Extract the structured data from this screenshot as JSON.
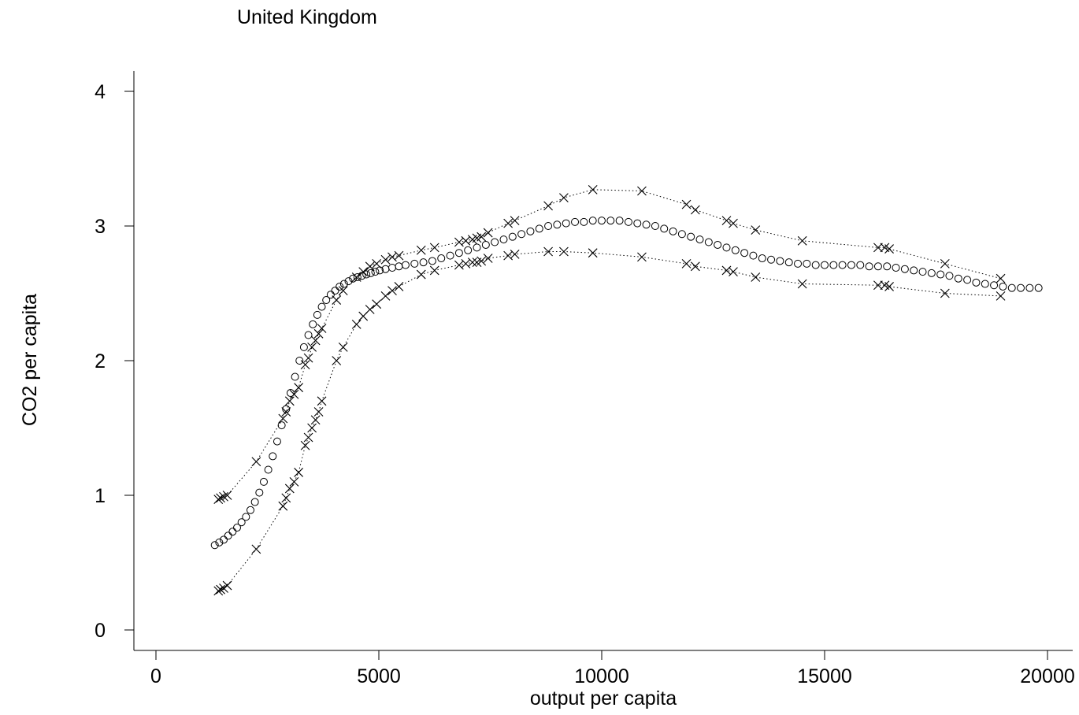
{
  "chart_data": {
    "type": "scatter",
    "title": "United Kingdom",
    "xlabel": "output per capita",
    "ylabel": "CO2 per capita",
    "xlim": [
      -500,
      20500
    ],
    "ylim": [
      -0.15,
      4.15
    ],
    "xticks": [
      0,
      5000,
      10000,
      15000,
      20000
    ],
    "xtick_labels": [
      "0",
      "5000",
      "10000",
      "15000",
      "20000"
    ],
    "yticks": [
      0,
      1,
      2,
      3,
      4
    ],
    "ytick_labels": [
      "0",
      "1",
      "2",
      "3",
      "4"
    ],
    "grid": false,
    "series": [
      {
        "marker": "circle",
        "x": [
          1320,
          1420,
          1520,
          1620,
          1720,
          1820,
          1920,
          2020,
          2120,
          2220,
          2320,
          2420,
          2520,
          2620,
          2720,
          2820,
          2920,
          3020,
          3120,
          3220,
          3320,
          3420,
          3520,
          3620,
          3720,
          3820,
          3920,
          4020,
          4120,
          4220,
          4320,
          4420,
          4520,
          4620,
          4720,
          4820,
          4920,
          5020,
          5150,
          5300,
          5450,
          5600,
          5800,
          6000,
          6200,
          6400,
          6600,
          6800,
          7000,
          7200,
          7400,
          7600,
          7800,
          8000,
          8200,
          8400,
          8600,
          8800,
          9000,
          9200,
          9400,
          9600,
          9800,
          10000,
          10200,
          10400,
          10600,
          10800,
          11000,
          11200,
          11400,
          11600,
          11800,
          12000,
          12200,
          12400,
          12600,
          12800,
          13000,
          13200,
          13400,
          13600,
          13800,
          14000,
          14200,
          14400,
          14600,
          14800,
          15000,
          15200,
          15400,
          15600,
          15800,
          16000,
          16200,
          16400,
          16600,
          16800,
          17000,
          17200,
          17400,
          17600,
          17800,
          18000,
          18200,
          18400,
          18600,
          18800,
          19000,
          19200,
          19400,
          19600,
          19800
        ],
        "y": [
          0.63,
          0.65,
          0.67,
          0.7,
          0.73,
          0.76,
          0.8,
          0.84,
          0.89,
          0.95,
          1.02,
          1.1,
          1.19,
          1.29,
          1.4,
          1.52,
          1.64,
          1.76,
          1.88,
          2.0,
          2.1,
          2.19,
          2.27,
          2.34,
          2.4,
          2.45,
          2.49,
          2.52,
          2.55,
          2.57,
          2.59,
          2.61,
          2.62,
          2.63,
          2.64,
          2.65,
          2.66,
          2.67,
          2.68,
          2.69,
          2.7,
          2.71,
          2.72,
          2.73,
          2.74,
          2.76,
          2.78,
          2.8,
          2.82,
          2.84,
          2.86,
          2.88,
          2.9,
          2.92,
          2.94,
          2.96,
          2.98,
          3.0,
          3.01,
          3.02,
          3.03,
          3.03,
          3.04,
          3.04,
          3.04,
          3.04,
          3.03,
          3.02,
          3.01,
          3.0,
          2.98,
          2.96,
          2.94,
          2.92,
          2.9,
          2.88,
          2.86,
          2.84,
          2.82,
          2.8,
          2.78,
          2.76,
          2.75,
          2.74,
          2.73,
          2.72,
          2.72,
          2.71,
          2.71,
          2.71,
          2.71,
          2.71,
          2.71,
          2.7,
          2.7,
          2.7,
          2.69,
          2.68,
          2.67,
          2.66,
          2.65,
          2.64,
          2.63,
          2.61,
          2.6,
          2.58,
          2.57,
          2.56,
          2.55,
          2.54,
          2.54,
          2.54,
          2.54
        ]
      },
      {
        "marker": "x",
        "line": "dotted",
        "x": [
          1400,
          1450,
          1520,
          1600,
          2250,
          2850,
          2920,
          3000,
          3100,
          3200,
          3350,
          3420,
          3500,
          3580,
          3650,
          3720,
          4050,
          4200,
          4500,
          4650,
          4800,
          4950,
          5150,
          5300,
          5450,
          5950,
          6250,
          6800,
          6950,
          7100,
          7200,
          7300,
          7450,
          7900,
          8050,
          8800,
          9150,
          9800,
          10900,
          11900,
          12100,
          12800,
          12950,
          13450,
          14500,
          16200,
          16350,
          16450,
          17700,
          18950
        ],
        "y": [
          0.97,
          0.98,
          0.99,
          1.0,
          1.25,
          1.57,
          1.62,
          1.7,
          1.75,
          1.8,
          1.97,
          2.02,
          2.1,
          2.15,
          2.2,
          2.24,
          2.45,
          2.52,
          2.62,
          2.66,
          2.7,
          2.72,
          2.75,
          2.77,
          2.78,
          2.82,
          2.84,
          2.88,
          2.89,
          2.9,
          2.91,
          2.92,
          2.95,
          3.02,
          3.04,
          3.15,
          3.21,
          3.27,
          3.26,
          3.16,
          3.12,
          3.04,
          3.02,
          2.97,
          2.89,
          2.84,
          2.84,
          2.83,
          2.72,
          2.61
        ]
      },
      {
        "marker": "x",
        "line": "dotted",
        "x": [
          1400,
          1450,
          1520,
          1600,
          2250,
          2850,
          2920,
          3000,
          3100,
          3200,
          3350,
          3420,
          3500,
          3580,
          3650,
          3720,
          4050,
          4200,
          4500,
          4650,
          4800,
          4950,
          5150,
          5300,
          5450,
          5950,
          6250,
          6800,
          6950,
          7100,
          7200,
          7300,
          7450,
          7900,
          8050,
          8800,
          9150,
          9800,
          10900,
          11900,
          12100,
          12800,
          12950,
          13450,
          14500,
          16200,
          16350,
          16450,
          17700,
          18950
        ],
        "y": [
          0.29,
          0.3,
          0.31,
          0.33,
          0.6,
          0.92,
          0.98,
          1.05,
          1.1,
          1.17,
          1.37,
          1.43,
          1.5,
          1.56,
          1.62,
          1.7,
          2.0,
          2.1,
          2.27,
          2.33,
          2.38,
          2.42,
          2.48,
          2.52,
          2.55,
          2.64,
          2.67,
          2.71,
          2.72,
          2.73,
          2.73,
          2.74,
          2.76,
          2.78,
          2.79,
          2.81,
          2.81,
          2.8,
          2.77,
          2.72,
          2.7,
          2.67,
          2.66,
          2.62,
          2.57,
          2.56,
          2.56,
          2.55,
          2.5,
          2.48
        ]
      }
    ]
  }
}
